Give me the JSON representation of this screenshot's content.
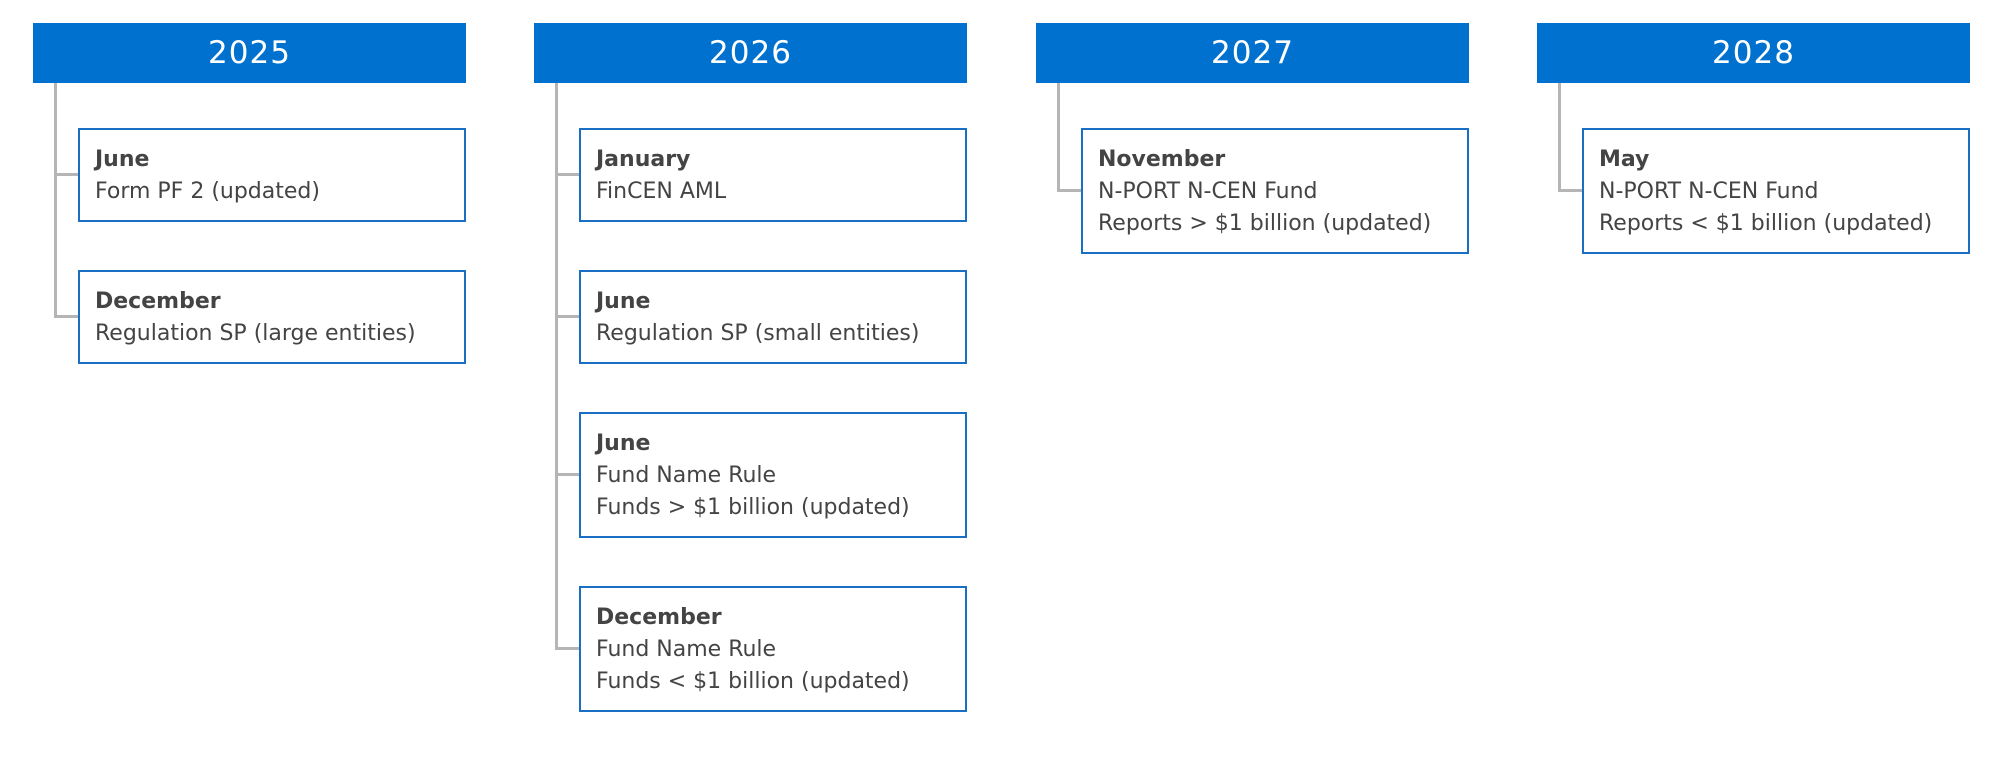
{
  "columns": [
    {
      "year": "2025",
      "items": [
        {
          "month": "June",
          "lines": [
            "Form PF 2 (updated)"
          ]
        },
        {
          "month": "December",
          "lines": [
            "Regulation SP (large entities)"
          ]
        }
      ]
    },
    {
      "year": "2026",
      "items": [
        {
          "month": "January",
          "lines": [
            "FinCEN AML"
          ]
        },
        {
          "month": "June",
          "lines": [
            "Regulation SP (small entities)"
          ]
        },
        {
          "month": "June",
          "lines": [
            "Fund Name Rule",
            "Funds > $1 billion (updated)"
          ]
        },
        {
          "month": "December",
          "lines": [
            "Fund Name Rule",
            "Funds < $1 billion (updated)"
          ]
        }
      ]
    },
    {
      "year": "2027",
      "items": [
        {
          "month": "November",
          "lines": [
            "N-PORT N-CEN Fund",
            "Reports > $1 billion (updated)"
          ]
        }
      ]
    },
    {
      "year": "2028",
      "items": [
        {
          "month": "May",
          "lines": [
            "N-PORT N-CEN Fund",
            "Reports < $1 billion (updated)"
          ]
        }
      ]
    }
  ]
}
